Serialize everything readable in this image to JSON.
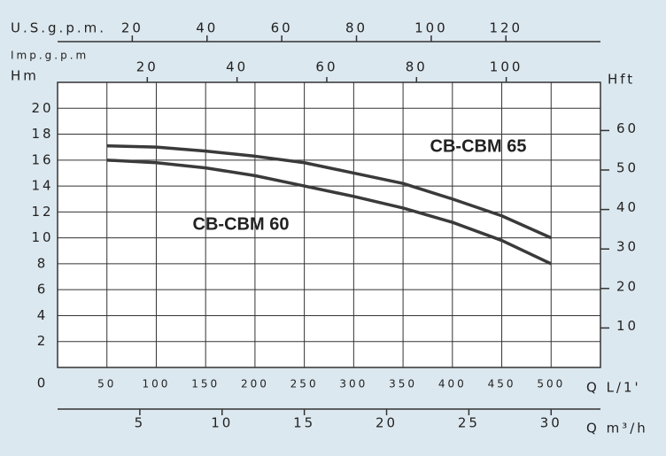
{
  "chart_data": {
    "type": "line",
    "x_label": "Q L/1'",
    "y_label": "Hm",
    "y2_label": "Hft",
    "x": [
      50,
      100,
      150,
      200,
      250,
      300,
      350,
      400,
      450,
      500
    ],
    "series": [
      {
        "name": "CB-CBM 65",
        "color": "#3a3a3a",
        "values": [
          17.1,
          17.0,
          16.7,
          16.3,
          15.8,
          15.0,
          14.2,
          13.0,
          11.7,
          10.0
        ]
      },
      {
        "name": "CB-CBM 60",
        "color": "#3a3a3a",
        "values": [
          16.0,
          15.8,
          15.4,
          14.8,
          14.0,
          13.2,
          12.3,
          11.2,
          9.8,
          8.0
        ]
      }
    ],
    "xlim": [
      0,
      550
    ],
    "xticks": [
      50,
      100,
      150,
      200,
      250,
      300,
      350,
      400,
      450,
      500
    ],
    "ylim": [
      0,
      22
    ],
    "yticks": [
      0,
      2,
      4,
      6,
      8,
      10,
      12,
      14,
      16,
      18,
      20
    ],
    "y2lim": [
      0,
      72.2
    ],
    "y2ticks": [
      10,
      20,
      30,
      40,
      50,
      60
    ],
    "grid": true,
    "extra_axes": [
      {
        "label": "U.S.g.p.m.",
        "lim": [
          0,
          145.3
        ],
        "ticks": [
          20,
          40,
          60,
          80,
          100,
          120
        ]
      },
      {
        "label": "Imp.g.p.m",
        "lim": [
          0,
          121
        ],
        "ticks": [
          20,
          40,
          60,
          80,
          100
        ]
      },
      {
        "label": "Q m³/h",
        "lim": [
          0,
          33
        ],
        "ticks": [
          5,
          10,
          15,
          20,
          25,
          30
        ]
      }
    ]
  }
}
